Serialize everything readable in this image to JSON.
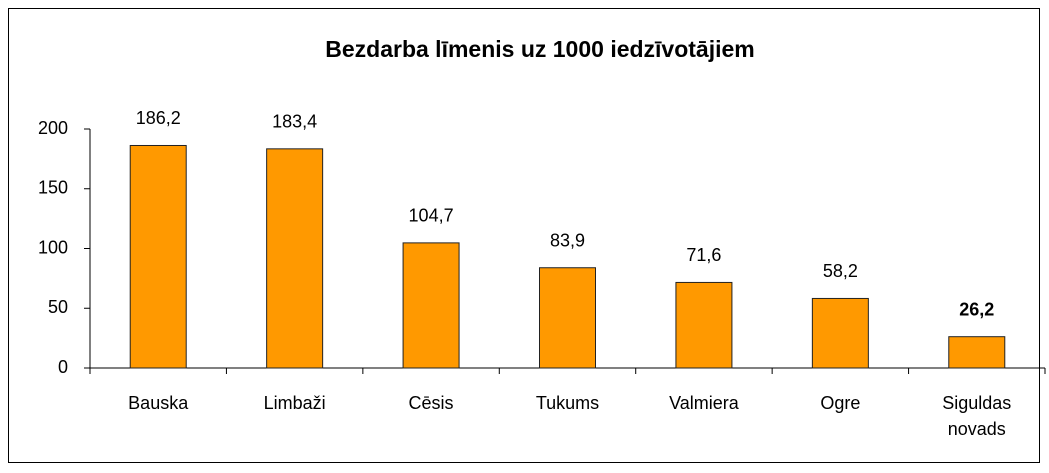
{
  "chart_data": {
    "type": "bar",
    "title": "Bezdarba līmenis uz 1000 iedzīvotājiem",
    "categories": [
      "Bauska",
      "Limbaži",
      "Cēsis",
      "Tukums",
      "Valmiera",
      "Ogre",
      "Siguldas novads"
    ],
    "values": [
      186.2,
      183.4,
      104.7,
      83.9,
      71.6,
      58.2,
      26.2
    ],
    "value_labels": [
      "186,2",
      "183,4",
      "104,7",
      "83,9",
      "71,6",
      "58,2",
      "26,2"
    ],
    "color": "#ff9900",
    "ylim": [
      0,
      200
    ],
    "yticks": [
      0,
      50,
      100,
      150,
      200
    ]
  }
}
